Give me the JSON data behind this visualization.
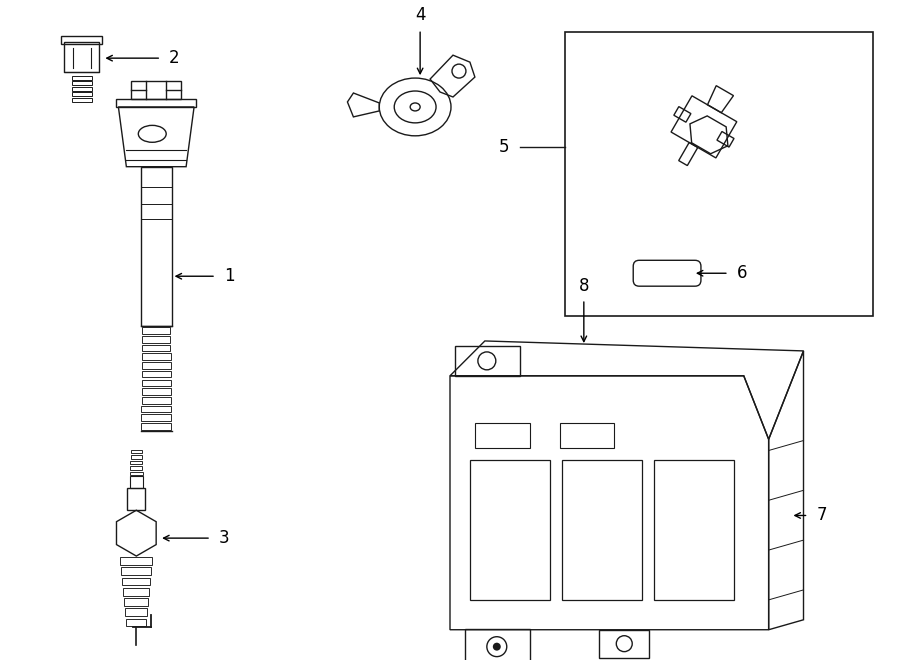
{
  "bg_color": "#ffffff",
  "line_color": "#1a1a1a",
  "text_color": "#000000",
  "fig_width": 9.0,
  "fig_height": 6.61,
  "lw": 1.0
}
